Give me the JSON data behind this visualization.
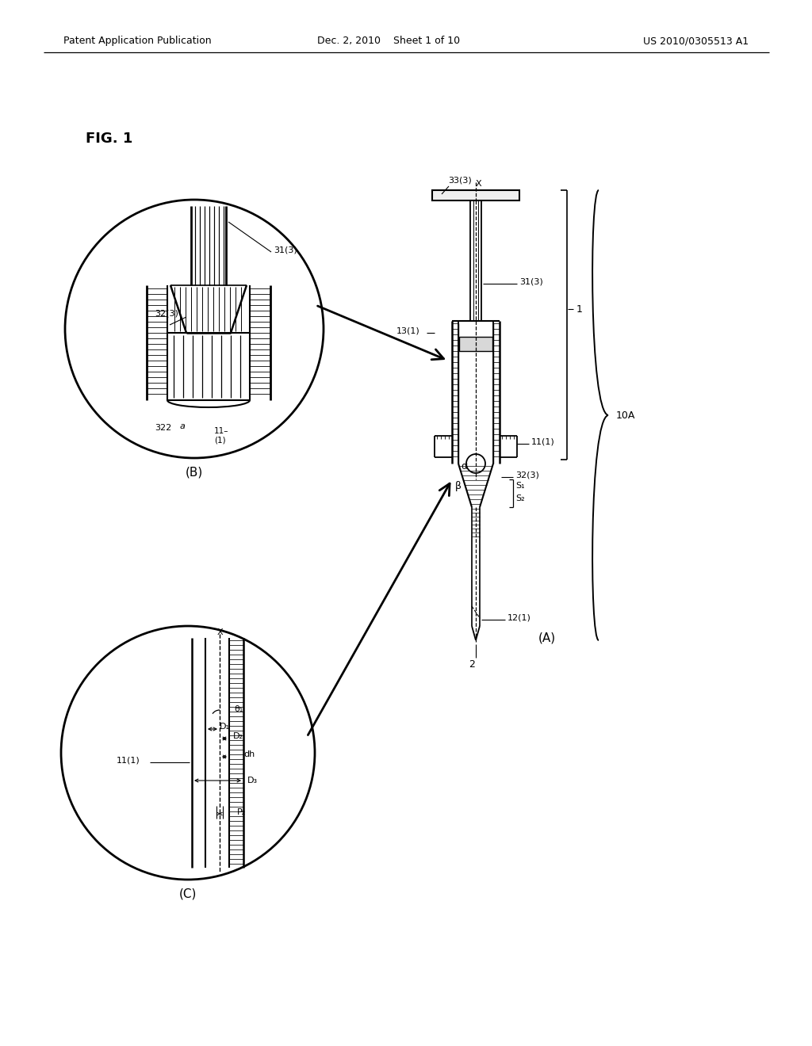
{
  "header_left": "Patent Application Publication",
  "header_mid": "Dec. 2, 2010    Sheet 1 of 10",
  "header_right": "US 2010/0305513 A1",
  "fig_label": "FIG. 1",
  "bg_color": "#ffffff"
}
